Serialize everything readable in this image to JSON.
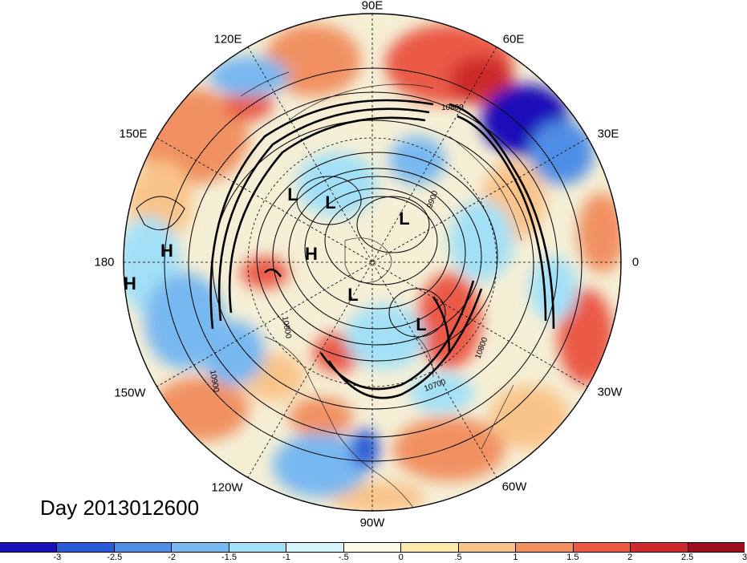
{
  "title": "Day 2013012600",
  "longitude_labels": {
    "lon_90e": "90E",
    "lon_120e": "120E",
    "lon_60e": "60E",
    "lon_150e": "150E",
    "lon_30e": "30E",
    "lon_180": "180",
    "lon_0": "0",
    "lon_150w": "150W",
    "lon_30w": "30W",
    "lon_120w": "120W",
    "lon_60w": "60W",
    "lon_90w": "90W"
  },
  "pressure_systems": [
    {
      "label": "L"
    },
    {
      "label": "L"
    },
    {
      "label": "L"
    },
    {
      "label": "L"
    },
    {
      "label": "L"
    },
    {
      "label": "H"
    },
    {
      "label": "H"
    },
    {
      "label": "H"
    }
  ],
  "contour_labels": {
    "c_10800_a": "10800",
    "c_9900": "9900",
    "c_10800_b": "10800",
    "c_10900": "10900",
    "c_10700": "10700",
    "c_10800_c": "10800"
  },
  "colorbar": {
    "ticks": [
      "-3",
      "-2.5",
      "-2",
      "-1.5",
      "-1",
      "-.5",
      "0",
      ".5",
      "1",
      "1.5",
      "2",
      "2.5",
      "3"
    ],
    "colors": [
      "#1a10b8",
      "#2a5cd6",
      "#4f8ee6",
      "#78b8f0",
      "#a3e0f7",
      "#d6f5fb",
      "#fbfbe6",
      "#fde8ac",
      "#f9c48a",
      "#f19162",
      "#ea5a46",
      "#cd2b2b",
      "#9e0f1e"
    ]
  }
}
